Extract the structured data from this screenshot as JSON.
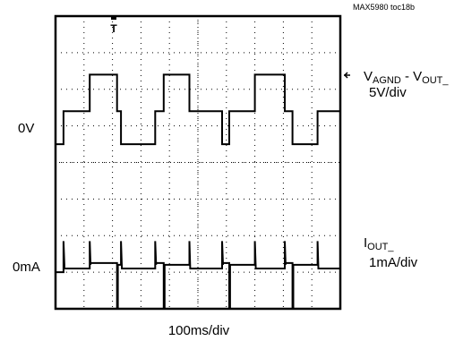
{
  "figure_id": "MAX5980 toc18b",
  "chart_data": {
    "type": "line",
    "xlabel": "100ms/div",
    "x_divisions": 10,
    "y_divisions": 8,
    "xlim": [
      0,
      1000
    ],
    "x_unit": "ms",
    "trigger_marker": "T",
    "channels": [
      {
        "ref_label": "0V",
        "label_main": "V",
        "label_sub1": "AGND",
        "label_mid": " - V",
        "label_sub2": "OUT_",
        "scale": "5V/div",
        "unit": "div",
        "x": [
          0,
          28,
          28,
          120,
          120,
          216,
          216,
          230,
          230,
          350,
          350,
          380,
          380,
          470,
          470,
          585,
          585,
          610,
          610,
          700,
          700,
          805,
          805,
          832,
          832,
          920,
          920,
          1000
        ],
        "y": [
          0,
          0,
          0.9,
          0.9,
          1.9,
          1.9,
          0.9,
          0.9,
          0,
          0,
          0.9,
          0.9,
          1.9,
          1.9,
          0.9,
          0.9,
          0,
          0,
          0.9,
          0.9,
          1.9,
          1.9,
          0.9,
          0.9,
          0,
          0,
          0.9,
          0.9
        ]
      },
      {
        "ref_label": "0mA",
        "label_main": "I",
        "label_sub1": "OUT_",
        "label_mid": "",
        "label_sub2": "",
        "scale": "1mA/div",
        "unit": "div",
        "x": [
          0,
          28,
          28,
          31,
          31,
          120,
          120,
          123,
          123,
          216,
          216,
          219,
          219,
          230,
          230,
          233,
          233,
          350,
          350,
          353,
          353,
          380,
          380,
          383,
          383,
          470,
          470,
          473,
          473,
          585,
          585,
          588,
          588,
          610,
          610,
          613,
          613,
          700,
          700,
          703,
          703,
          805,
          805,
          808,
          808,
          832,
          832,
          835,
          835,
          920,
          920,
          923,
          923,
          1000
        ],
        "y": [
          0,
          0,
          0.85,
          0.2,
          0.1,
          0.1,
          0.85,
          0.2,
          0.25,
          0.25,
          -1,
          -1,
          0.2,
          0.2,
          0.85,
          0.1,
          0.1,
          0.1,
          0.85,
          0.2,
          0.25,
          0.25,
          -1,
          -1,
          0.2,
          0.2,
          0.85,
          0.1,
          0.1,
          0.1,
          0.85,
          0.2,
          0.25,
          0.25,
          -1,
          -1,
          0.2,
          0.2,
          0.85,
          0.1,
          0.1,
          0.1,
          0.85,
          0.2,
          0.25,
          0.25,
          -1,
          -1,
          0.2,
          0.2,
          0.85,
          0.1,
          0.1,
          0.1
        ]
      }
    ]
  }
}
